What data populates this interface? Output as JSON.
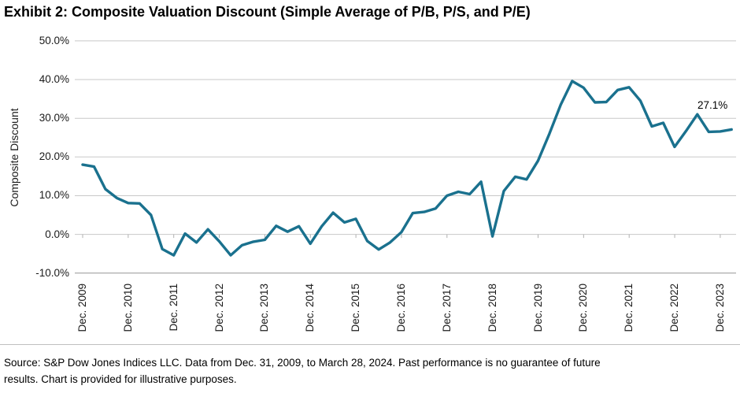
{
  "title": "Exhibit 2: Composite Valuation Discount (Simple Average of P/B, P/S, and P/E)",
  "source_line1": "Source: S&P Dow Jones Indices LLC. Data from Dec. 31, 2009, to March 28, 2024. Past performance is no guarantee of future",
  "source_line2": "results. Chart is provided for illustrative purposes.",
  "chart_data": {
    "type": "line",
    "title": "Exhibit 2: Composite Valuation Discount (Simple Average of P/B, P/S, and P/E)",
    "xlabel": "",
    "ylabel": "Composite Discount",
    "ylim": [
      -10,
      50
    ],
    "grid": "horizontal",
    "legend": "none",
    "frequency": "quarterly",
    "end_point_label": "27.1%",
    "line_color": "#1A718E",
    "gridline_color": "#c8c8c8",
    "bottom_line_color": "#969696",
    "y_tick_values": [
      50,
      40,
      30,
      20,
      10,
      0,
      -10
    ],
    "y_tick_labels": [
      "50.0%",
      "40.0%",
      "30.0%",
      "20.0%",
      "10.0%",
      "0.0%",
      "-10.0%"
    ],
    "x_tick_labels": [
      "Dec. 2009",
      "Dec. 2010",
      "Dec. 2011",
      "Dec. 2012",
      "Dec. 2013",
      "Dec. 2014",
      "Dec. 2015",
      "Dec. 2016",
      "Dec. 2017",
      "Dec. 2018",
      "Dec. 2019",
      "Dec. 2020",
      "Dec. 2021",
      "Dec. 2022",
      "Dec. 2023"
    ],
    "series": [
      {
        "name": "Composite Discount",
        "x": [
          "Dec 2009",
          "Mar 2010",
          "Jun 2010",
          "Sep 2010",
          "Dec 2010",
          "Mar 2011",
          "Jun 2011",
          "Sep 2011",
          "Dec 2011",
          "Mar 2012",
          "Jun 2012",
          "Sep 2012",
          "Dec 2012",
          "Mar 2013",
          "Jun 2013",
          "Sep 2013",
          "Dec 2013",
          "Mar 2014",
          "Jun 2014",
          "Sep 2014",
          "Dec 2014",
          "Mar 2015",
          "Jun 2015",
          "Sep 2015",
          "Dec 2015",
          "Mar 2016",
          "Jun 2016",
          "Sep 2016",
          "Dec 2016",
          "Mar 2017",
          "Jun 2017",
          "Sep 2017",
          "Dec 2017",
          "Mar 2018",
          "Jun 2018",
          "Sep 2018",
          "Dec 2018",
          "Mar 2019",
          "Jun 2019",
          "Sep 2019",
          "Dec 2019",
          "Mar 2020",
          "Jun 2020",
          "Sep 2020",
          "Dec 2020",
          "Mar 2021",
          "Jun 2021",
          "Sep 2021",
          "Dec 2021",
          "Mar 2022",
          "Jun 2022",
          "Sep 2022",
          "Dec 2022",
          "Mar 2023",
          "Jun 2023",
          "Sep 2023",
          "Dec 2023",
          "Mar 2024"
        ],
        "values": [
          18.0,
          17.5,
          11.7,
          9.4,
          8.1,
          8.0,
          5.0,
          -3.8,
          -5.4,
          0.2,
          -2.1,
          1.3,
          -1.8,
          -5.4,
          -2.8,
          -1.9,
          -1.4,
          2.2,
          0.7,
          2.1,
          -2.4,
          2.1,
          5.6,
          3.1,
          4.0,
          -1.7,
          -3.9,
          -2.1,
          0.6,
          5.5,
          5.8,
          6.7,
          10.0,
          11.0,
          10.4,
          13.6,
          -0.5,
          11.2,
          14.9,
          14.2,
          19.0,
          26.0,
          33.5,
          39.6,
          37.9,
          34.1,
          34.2,
          37.3,
          38.0,
          34.5,
          27.9,
          28.8,
          22.6,
          26.7,
          31.0,
          26.5,
          26.6,
          27.1
        ]
      }
    ]
  }
}
